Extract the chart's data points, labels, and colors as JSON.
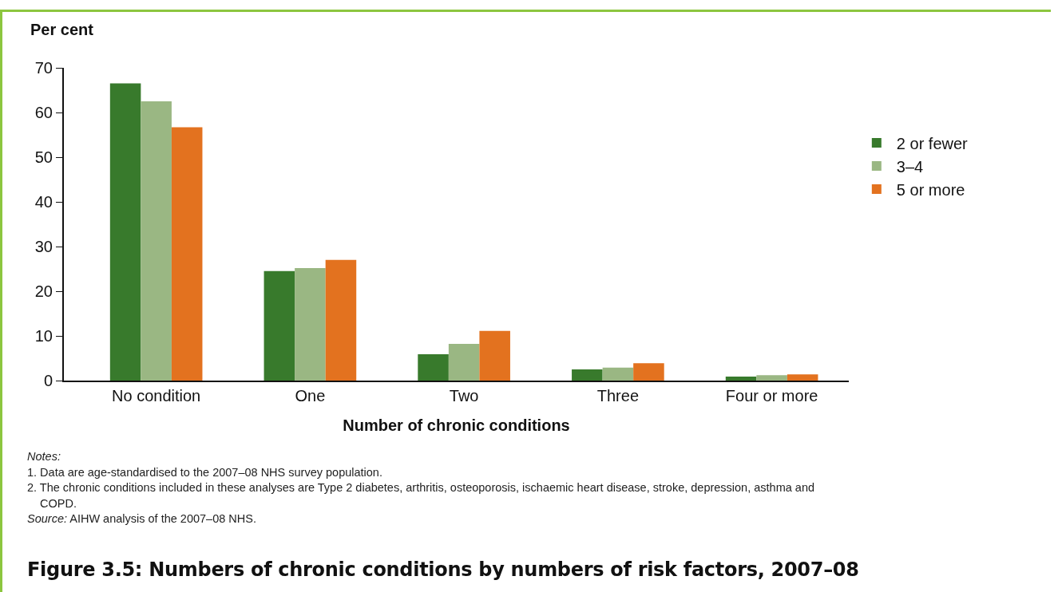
{
  "chart_data": {
    "type": "bar",
    "title": "Figure 3.5: Numbers of chronic conditions by numbers of risk factors, 2007–08",
    "xlabel": "Number of chronic conditions",
    "ylabel": "Per cent",
    "categories": [
      "No condition",
      "One",
      "Two",
      "Three",
      "Four or more"
    ],
    "series": [
      {
        "name": "2 or fewer",
        "color": "#387a2c",
        "values": [
          66.5,
          24.5,
          5.9,
          2.5,
          0.9
        ]
      },
      {
        "name": "3–4",
        "color": "#9ab783",
        "values": [
          62.5,
          25.2,
          8.2,
          2.9,
          1.2
        ]
      },
      {
        "name": "5 or more",
        "color": "#e3721f",
        "values": [
          56.7,
          27.0,
          11.1,
          3.9,
          1.4
        ]
      }
    ],
    "ylim": [
      0,
      70
    ],
    "yticks": [
      0,
      10,
      20,
      30,
      40,
      50,
      60,
      70
    ],
    "grid": false,
    "legend": "right",
    "annotations": [
      "Notes:",
      "1. Data are age-standardised to the 2007–08 NHS survey population.",
      "2. The chronic conditions included in these analyses are Type 2 diabetes, arthritis, osteoporosis, ischaemic heart disease, stroke, depression, asthma and COPD.",
      "Source: AIHW analysis of the 2007–08 NHS."
    ]
  }
}
